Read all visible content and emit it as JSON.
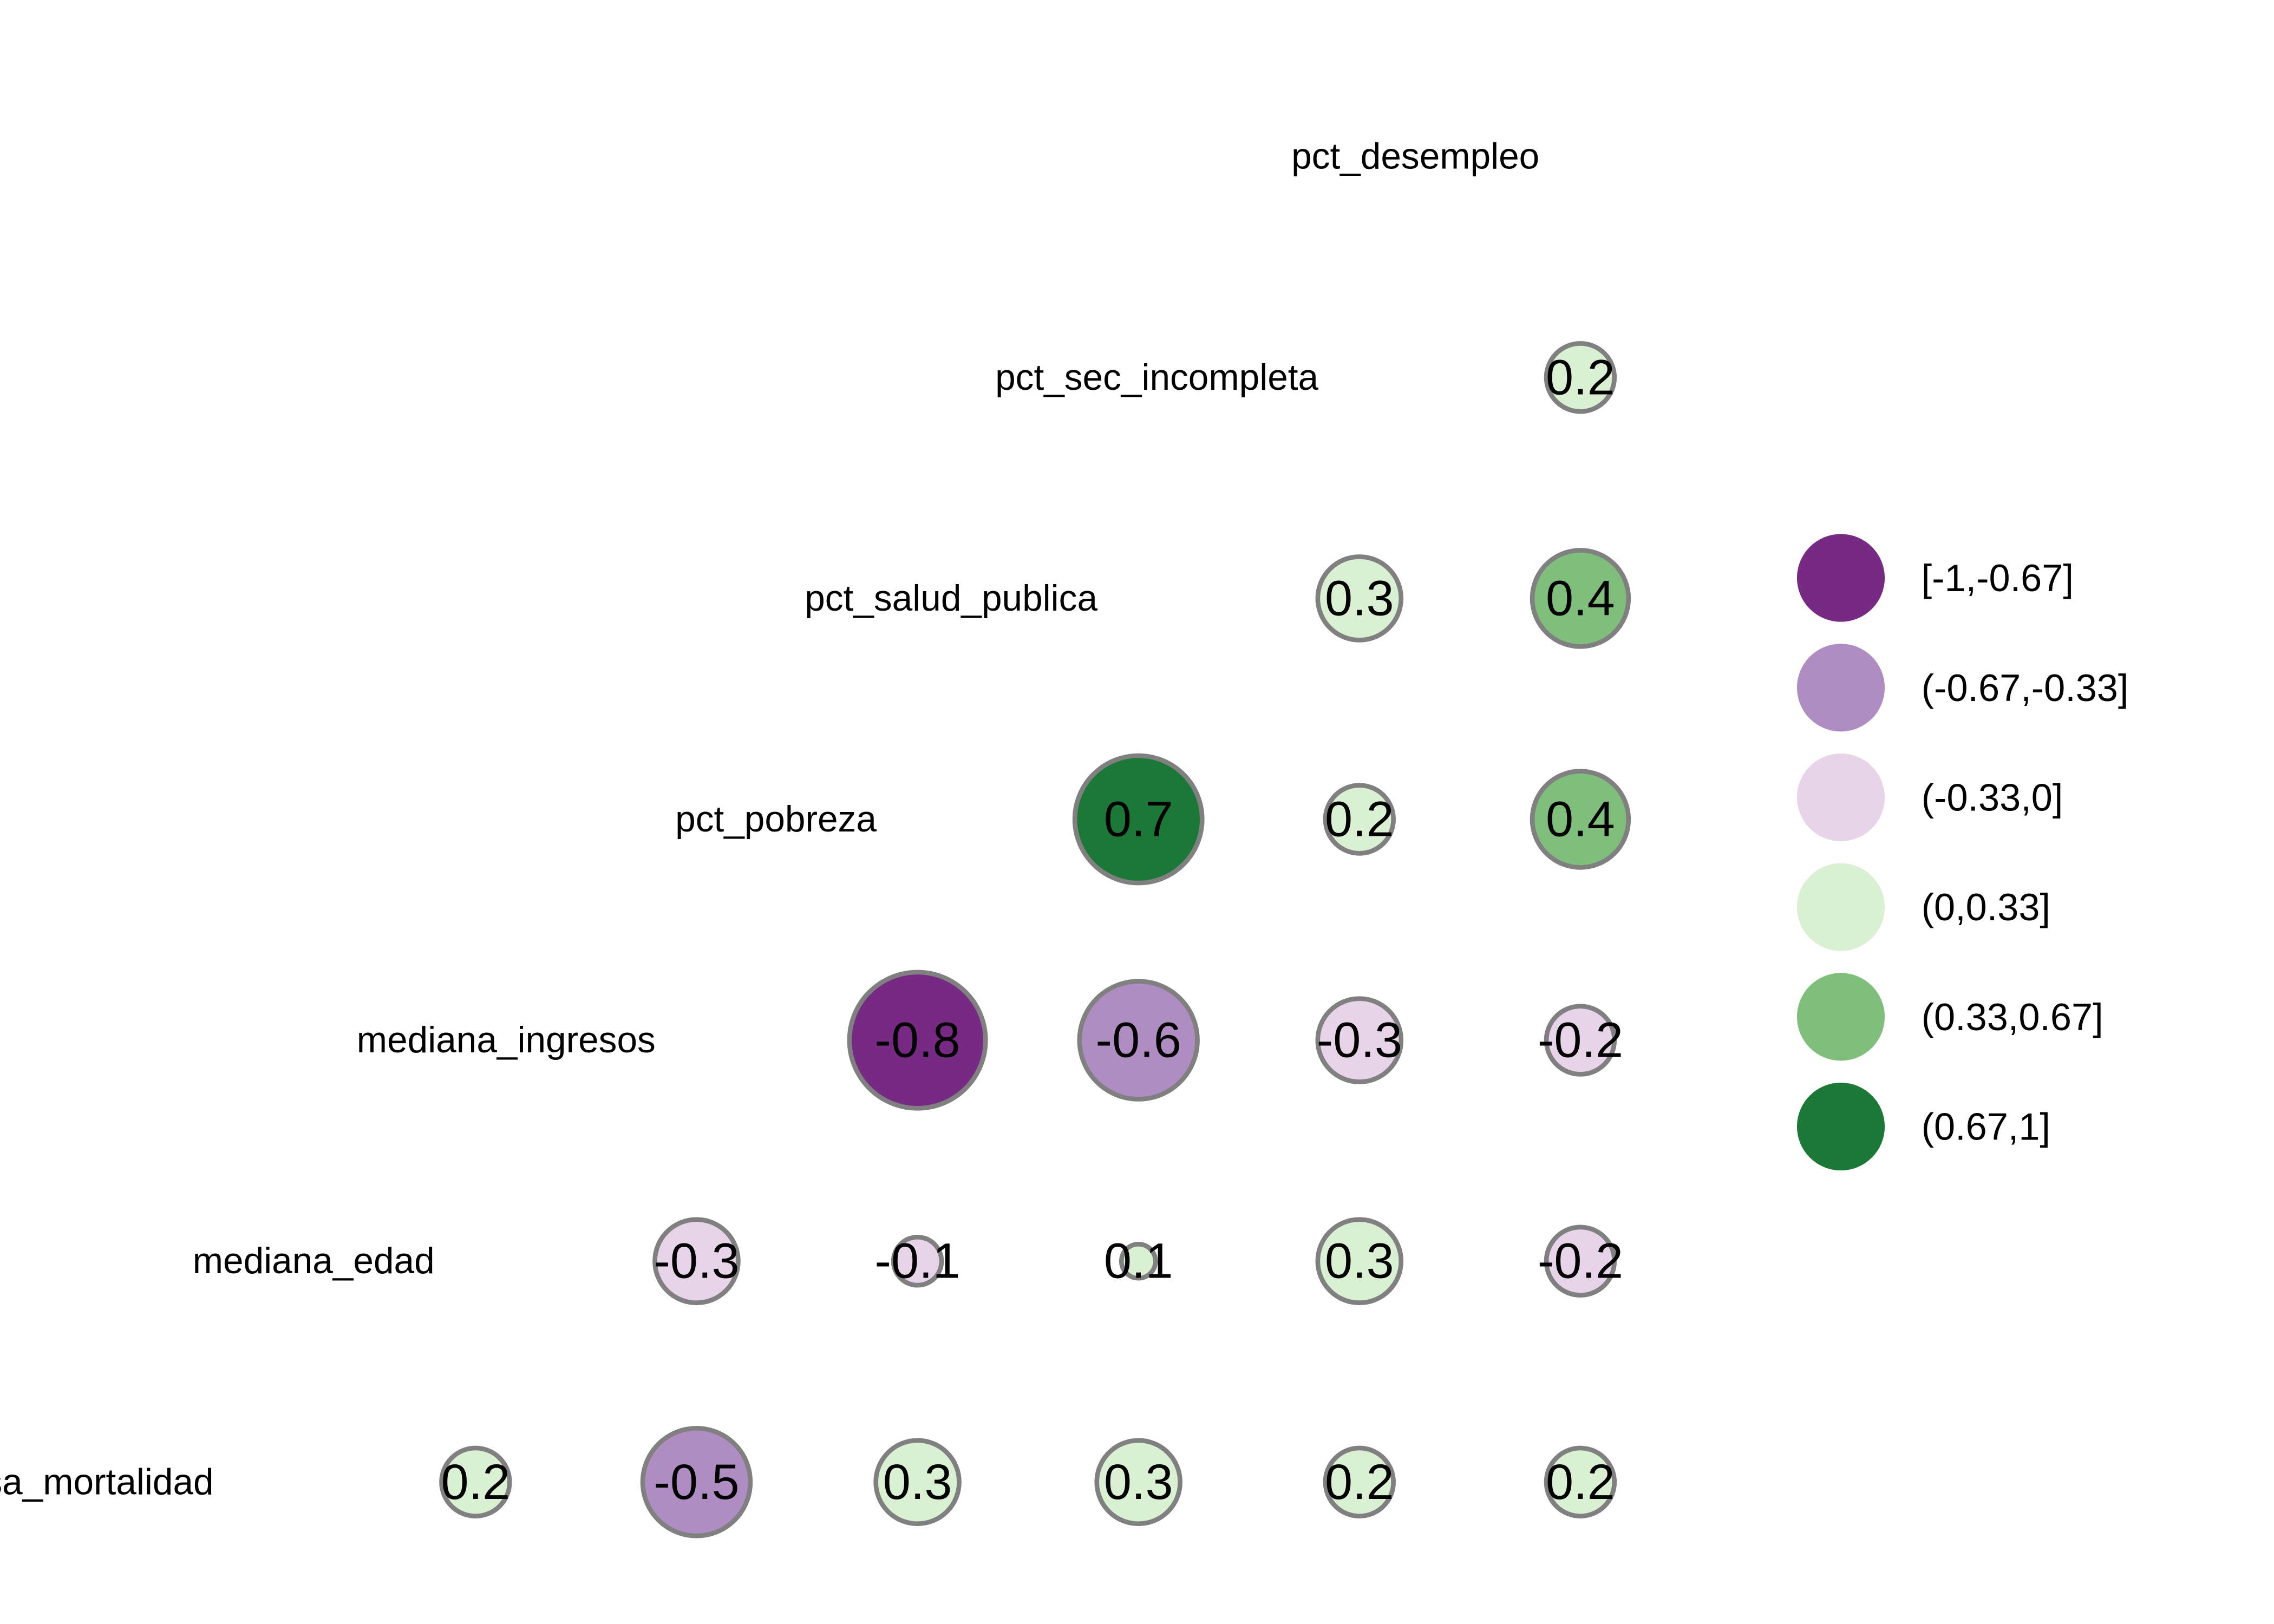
{
  "chart_data": {
    "type": "correlation-matrix",
    "title": "",
    "variables": [
      "tasa_mortalidad",
      "mediana_edad",
      "mediana_ingresos",
      "pct_pobreza",
      "pct_salud_publica",
      "pct_sec_incompleta",
      "pct_desempleo"
    ],
    "cells": [
      {
        "row": "tasa_mortalidad",
        "col": "mediana_edad",
        "value": 0.2,
        "label": "0.2"
      },
      {
        "row": "tasa_mortalidad",
        "col": "mediana_ingresos",
        "value": -0.5,
        "label": "-0.5"
      },
      {
        "row": "tasa_mortalidad",
        "col": "pct_pobreza",
        "value": 0.3,
        "label": "0.3"
      },
      {
        "row": "tasa_mortalidad",
        "col": "pct_salud_publica",
        "value": 0.3,
        "label": "0.3"
      },
      {
        "row": "tasa_mortalidad",
        "col": "pct_sec_incompleta",
        "value": 0.2,
        "label": "0.2"
      },
      {
        "row": "tasa_mortalidad",
        "col": "pct_desempleo",
        "value": 0.2,
        "label": "0.2"
      },
      {
        "row": "mediana_edad",
        "col": "mediana_ingresos",
        "value": -0.3,
        "label": "-0.3"
      },
      {
        "row": "mediana_edad",
        "col": "pct_pobreza",
        "value": -0.1,
        "label": "-0.1"
      },
      {
        "row": "mediana_edad",
        "col": "pct_salud_publica",
        "value": 0.05,
        "label": "0.1"
      },
      {
        "row": "mediana_edad",
        "col": "pct_sec_incompleta",
        "value": 0.3,
        "label": "0.3"
      },
      {
        "row": "mediana_edad",
        "col": "pct_desempleo",
        "value": -0.2,
        "label": "-0.2"
      },
      {
        "row": "mediana_ingresos",
        "col": "pct_pobreza",
        "value": -0.8,
        "label": "-0.8"
      },
      {
        "row": "mediana_ingresos",
        "col": "pct_salud_publica",
        "value": -0.6,
        "label": "-0.6"
      },
      {
        "row": "mediana_ingresos",
        "col": "pct_sec_incompleta",
        "value": -0.3,
        "label": "-0.3"
      },
      {
        "row": "mediana_ingresos",
        "col": "pct_desempleo",
        "value": -0.2,
        "label": "-0.2"
      },
      {
        "row": "pct_pobreza",
        "col": "pct_salud_publica",
        "value": 0.7,
        "label": "0.7"
      },
      {
        "row": "pct_pobreza",
        "col": "pct_sec_incompleta",
        "value": 0.2,
        "label": "0.2"
      },
      {
        "row": "pct_pobreza",
        "col": "pct_desempleo",
        "value": 0.4,
        "label": "0.4"
      },
      {
        "row": "pct_salud_publica",
        "col": "pct_sec_incompleta",
        "value": 0.3,
        "label": "0.3"
      },
      {
        "row": "pct_salud_publica",
        "col": "pct_desempleo",
        "value": 0.4,
        "label": "0.4"
      },
      {
        "row": "pct_sec_incompleta",
        "col": "pct_desempleo",
        "value": 0.2,
        "label": "0.2"
      }
    ],
    "legend": {
      "placement": "right",
      "entries": [
        {
          "label": "[-1,-0.67]",
          "color": "#762A83"
        },
        {
          "label": "(-0.67,-0.33]",
          "color": "#AF8DC3"
        },
        {
          "label": "(-0.33,0]",
          "color": "#E7D4E8"
        },
        {
          "label": "(0,0.33]",
          "color": "#D9F0D3"
        },
        {
          "label": "(0.33,0.67]",
          "color": "#7FBF7B"
        },
        {
          "label": "(0.67,1]",
          "color": "#1B7837"
        }
      ]
    },
    "circle_outline_color": "#808080"
  }
}
